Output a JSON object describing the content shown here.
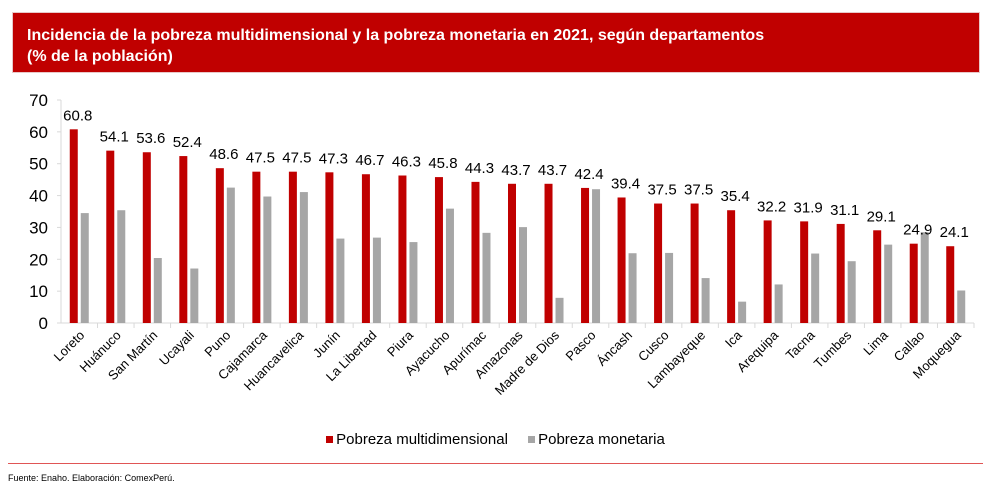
{
  "header": {
    "title_line1": "Incidencia de la pobreza multidimensional y la pobreza monetaria en 2021, según departamentos",
    "title_line2": "(% de la población)"
  },
  "colors": {
    "title_bg": "#c00000",
    "series1": "#c00000",
    "series2": "#a6a6a6",
    "axis": "#d9d9d9"
  },
  "footer": {
    "source": "Fuente: Enaho. Elaboración: ComexPerú."
  },
  "chart_data": {
    "type": "bar",
    "title": "Incidencia de la pobreza multidimensional y la pobreza monetaria en 2021, según departamentos (% de la población)",
    "xlabel": "",
    "ylabel": "",
    "ylim": [
      0,
      70
    ],
    "yticks": [
      0,
      10,
      20,
      30,
      40,
      50,
      60,
      70
    ],
    "grid": false,
    "legend_position": "bottom-center",
    "categories": [
      "Loreto",
      "Huánuco",
      "San Martín",
      "Ucayali",
      "Puno",
      "Cajamarca",
      "Huancavelica",
      "Junín",
      "La Libertad",
      "Piura",
      "Ayacucho",
      "Apurímac",
      "Amazonas",
      "Madre de Dios",
      "Pasco",
      "Áncash",
      "Cusco",
      "Lambayeque",
      "Ica",
      "Arequipa",
      "Tacna",
      "Tumbes",
      "Lima",
      "Callao",
      "Moquegua"
    ],
    "series": [
      {
        "name": "Pobreza multidimensional",
        "labeled": true,
        "values": [
          60.8,
          54.1,
          53.6,
          52.4,
          48.6,
          47.5,
          47.5,
          47.3,
          46.7,
          46.3,
          45.8,
          44.3,
          43.7,
          43.7,
          42.4,
          39.4,
          37.5,
          37.5,
          35.4,
          32.2,
          31.9,
          31.1,
          29.1,
          24.9,
          24.1
        ]
      },
      {
        "name": "Pobreza monetaria",
        "labeled": false,
        "values": [
          34.5,
          35.4,
          20.4,
          17.1,
          42.5,
          39.7,
          41.1,
          26.5,
          26.8,
          25.4,
          35.9,
          28.3,
          30.1,
          7.9,
          42.0,
          21.9,
          22.0,
          14.1,
          6.7,
          12.1,
          21.8,
          19.4,
          24.6,
          28.5,
          10.2
        ]
      }
    ]
  }
}
